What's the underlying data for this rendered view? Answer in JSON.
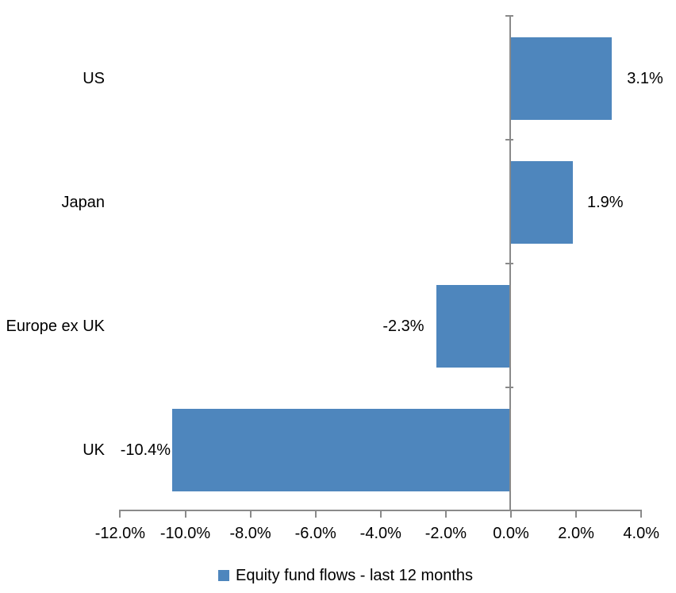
{
  "chart_data": {
    "type": "bar",
    "orientation": "horizontal",
    "title": "",
    "categories": [
      "US",
      "Japan",
      "Europe ex UK",
      "UK"
    ],
    "series": [
      {
        "name": "Equity fund flows - last 12 months",
        "values": [
          3.1,
          1.9,
          -2.3,
          -10.4
        ]
      }
    ],
    "data_labels": [
      "3.1%",
      "1.9%",
      "-2.3%",
      "-10.4%"
    ],
    "x_axis": {
      "min": -12,
      "max": 4,
      "tick_values": [
        -12,
        -10,
        -8,
        -6,
        -4,
        -2,
        0,
        2,
        4
      ],
      "tick_labels": [
        "-12.0%",
        "-10.0%",
        "-8.0%",
        "-6.0%",
        "-4.0%",
        "-2.0%",
        "0.0%",
        "2.0%",
        "4.0%"
      ]
    },
    "grid": false,
    "legend": {
      "position": "bottom",
      "label": "Equity fund flows - last 12 months"
    },
    "colors": {
      "bar": "#4E86BD",
      "axis": "#8A8A8A",
      "text": "#000000",
      "background": "#FFFFFF"
    }
  }
}
